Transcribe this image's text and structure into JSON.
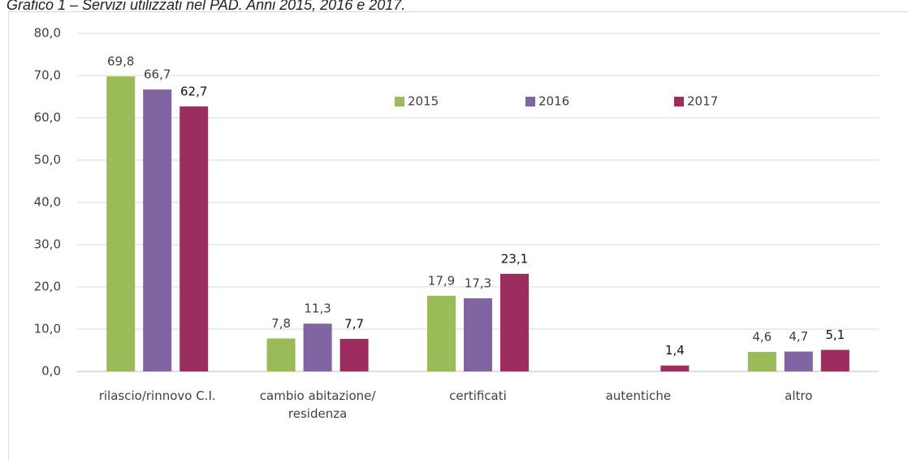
{
  "chart_data": {
    "type": "bar",
    "title": "Grafico 1 – Servizi utilizzati nel PAD. Anni 2015, 2016 e 2017.",
    "categories": [
      "rilascio/rinnovo C.I.",
      "cambio abitazione/ residenza",
      "certificati",
      "autentiche",
      "altro"
    ],
    "series": [
      {
        "name": "2015",
        "color": "#9bbb59",
        "values": [
          69.8,
          7.8,
          17.9,
          null,
          4.6
        ],
        "value_labels": [
          "69,8",
          "7,8",
          "17,9",
          null,
          "4,6"
        ]
      },
      {
        "name": "2016",
        "color": "#8064a2",
        "values": [
          66.7,
          11.3,
          17.3,
          null,
          4.7
        ],
        "value_labels": [
          "66,7",
          "11,3",
          "17,3",
          null,
          "4,7"
        ]
      },
      {
        "name": "2017",
        "color": "#9b2d5f",
        "values": [
          62.7,
          7.7,
          23.1,
          1.4,
          5.1
        ],
        "value_labels": [
          "62,7",
          "7,7",
          "23,1",
          "1,4",
          "5,1"
        ]
      }
    ],
    "ylim": [
      0,
      80
    ],
    "yticks": [
      {
        "value": 0,
        "label": "0,0"
      },
      {
        "value": 10,
        "label": "10,0"
      },
      {
        "value": 20,
        "label": "20,0"
      },
      {
        "value": 30,
        "label": "30,0"
      },
      {
        "value": 40,
        "label": "40,0"
      },
      {
        "value": 50,
        "label": "50,0"
      },
      {
        "value": 60,
        "label": "60,0"
      },
      {
        "value": 70,
        "label": "70,0"
      },
      {
        "value": 80,
        "label": "80,0"
      }
    ],
    "grid": true,
    "legend": "top"
  }
}
